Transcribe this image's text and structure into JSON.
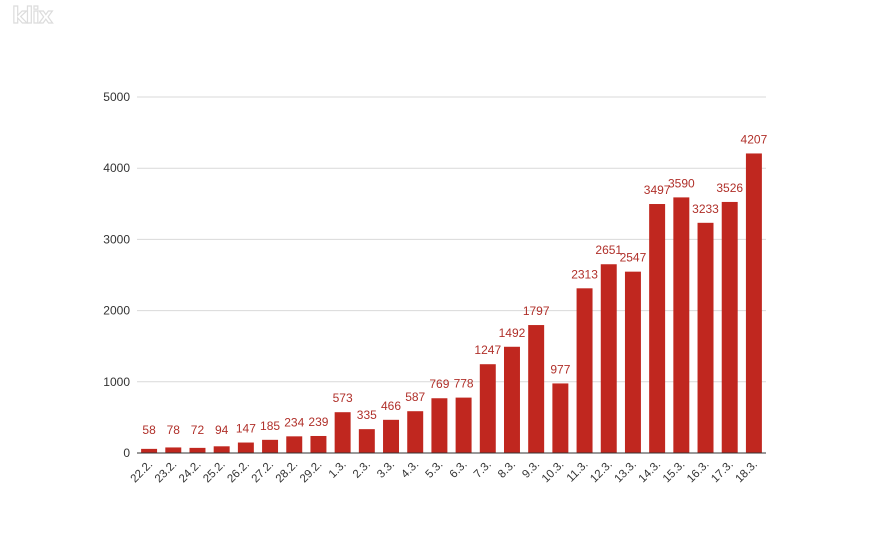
{
  "watermark": {
    "text": "klix"
  },
  "chart_data": {
    "type": "bar",
    "title": "",
    "xlabel": "",
    "ylabel": "",
    "ylim": [
      0,
      5000
    ],
    "yticks": [
      0,
      1000,
      2000,
      3000,
      4000,
      5000
    ],
    "grid": true,
    "legend": "none",
    "bar_color": "#c0271f",
    "label_color": "#b0302a",
    "categories": [
      "22.2.",
      "23.2.",
      "24.2.",
      "25.2.",
      "26.2.",
      "27.2.",
      "28.2.",
      "29.2.",
      "1.3.",
      "2.3.",
      "3.3.",
      "4.3.",
      "5.3.",
      "6.3.",
      "7.3.",
      "8.3.",
      "9.3.",
      "10.3.",
      "11.3.",
      "12.3.",
      "13.3.",
      "14.3.",
      "15.3.",
      "16.3.",
      "17.3.",
      "18.3."
    ],
    "values": [
      58,
      78,
      72,
      94,
      147,
      185,
      234,
      239,
      573,
      335,
      466,
      587,
      769,
      778,
      1247,
      1492,
      1797,
      977,
      2313,
      2651,
      2547,
      3497,
      3590,
      3233,
      3526,
      4207
    ]
  }
}
